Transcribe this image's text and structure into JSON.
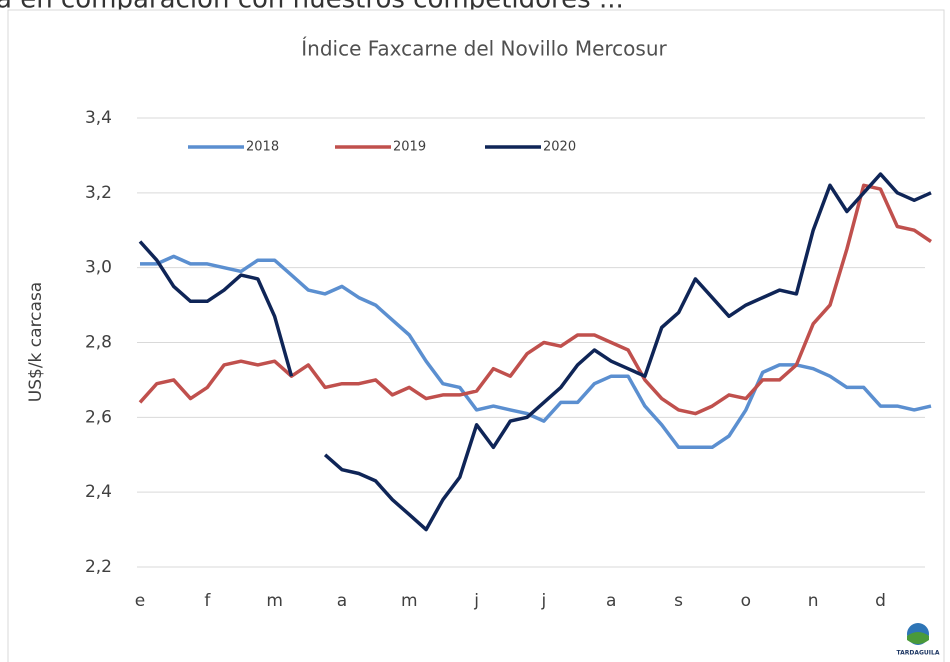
{
  "caption": "a en comparación con nuestros competidores ...",
  "logo": "TARDAGUILA",
  "chart_data": {
    "type": "line",
    "title": "Índice Faxcarne del Novillo Mercosur",
    "y_label": "US$/k carcasa",
    "categories": [
      "e",
      null,
      null,
      null,
      "f",
      null,
      null,
      null,
      "m",
      null,
      null,
      null,
      "a",
      null,
      null,
      null,
      "m",
      null,
      null,
      null,
      "j",
      null,
      null,
      null,
      "j",
      null,
      null,
      null,
      "a",
      null,
      null,
      null,
      "s",
      null,
      null,
      null,
      "o",
      null,
      null,
      null,
      "n",
      null,
      null,
      null,
      "d",
      null,
      null,
      null
    ],
    "ylim": [
      2.2,
      3.4
    ],
    "yticks": [
      {
        "value": 2.2,
        "label": "2,2"
      },
      {
        "value": 2.4,
        "label": "2,4"
      },
      {
        "value": 2.6,
        "label": "2,6"
      },
      {
        "value": 2.8,
        "label": "2,8"
      },
      {
        "value": 3.0,
        "label": "3,0"
      },
      {
        "value": 3.2,
        "label": "3,2"
      },
      {
        "value": 3.4,
        "label": "3,4"
      }
    ],
    "grid": true,
    "legend": "top",
    "series": [
      {
        "name": "2018",
        "color": "#5b8fd0",
        "values": [
          3.01,
          3.01,
          3.03,
          3.01,
          3.01,
          3.0,
          2.99,
          3.02,
          3.02,
          2.98,
          2.94,
          2.93,
          2.95,
          2.92,
          2.9,
          2.86,
          2.82,
          2.75,
          2.69,
          2.68,
          2.62,
          2.63,
          2.62,
          2.61,
          2.59,
          2.64,
          2.64,
          2.69,
          2.71,
          2.71,
          2.63,
          2.58,
          2.52,
          2.52,
          2.52,
          2.55,
          2.62,
          2.72,
          2.74,
          2.74,
          2.73,
          2.71,
          2.68,
          2.68,
          2.63,
          2.63,
          2.62,
          2.63
        ]
      },
      {
        "name": "2019",
        "color": "#c0504d",
        "values": [
          2.64,
          2.69,
          2.7,
          2.65,
          2.68,
          2.74,
          2.75,
          2.74,
          2.75,
          2.71,
          2.74,
          2.68,
          2.69,
          2.69,
          2.7,
          2.66,
          2.68,
          2.65,
          2.66,
          2.66,
          2.67,
          2.73,
          2.71,
          2.77,
          2.8,
          2.79,
          2.82,
          2.82,
          2.8,
          2.78,
          2.7,
          2.65,
          2.62,
          2.61,
          2.63,
          2.66,
          2.65,
          2.7,
          2.7,
          2.74,
          2.85,
          2.9,
          3.05,
          3.22,
          3.21,
          3.11,
          3.1,
          3.07
        ]
      },
      {
        "name": "2020",
        "color": "#0f2557",
        "values": [
          3.07,
          3.02,
          2.95,
          2.91,
          2.91,
          2.94,
          2.98,
          2.97,
          2.87,
          2.71,
          null,
          2.5,
          2.46,
          2.45,
          2.43,
          2.38,
          2.34,
          2.3,
          2.38,
          2.44,
          2.58,
          2.52,
          2.59,
          2.6,
          2.64,
          2.68,
          2.74,
          2.78,
          2.75,
          2.73,
          2.71,
          2.84,
          2.88,
          2.97,
          2.92,
          2.87,
          2.9,
          2.92,
          2.94,
          2.93,
          3.1,
          3.22,
          3.15,
          3.2,
          3.25,
          3.2,
          3.18,
          3.2
        ]
      }
    ]
  }
}
